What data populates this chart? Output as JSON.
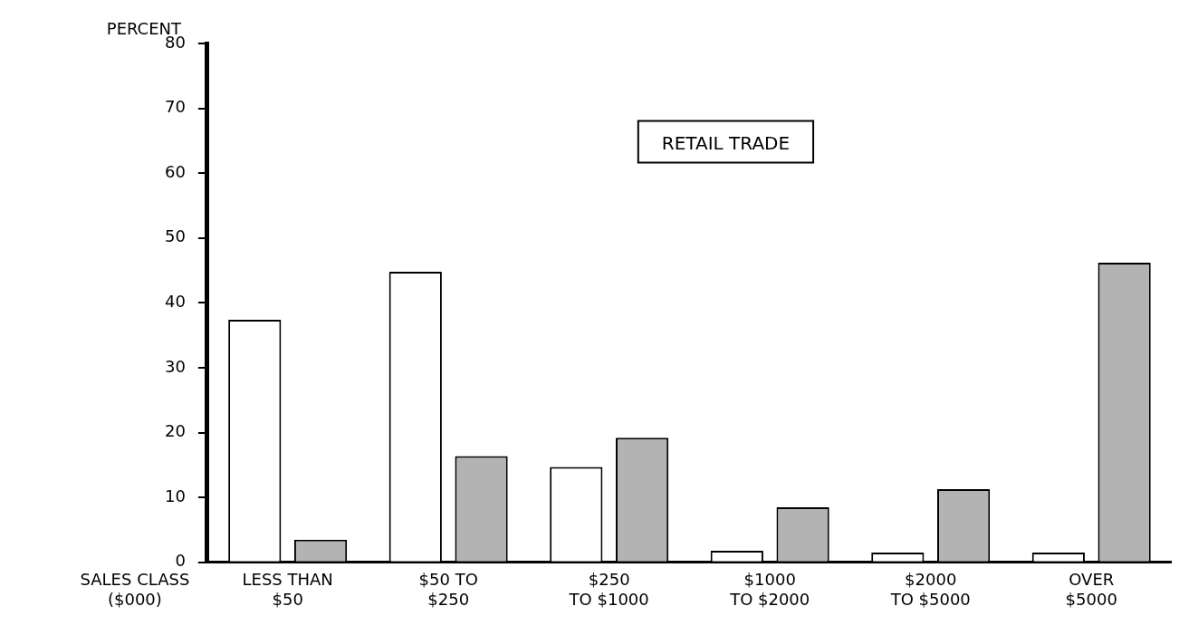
{
  "chart_data": {
    "type": "bar",
    "title": "RETAIL TRADE",
    "ylabel": "PERCENT",
    "xlabel": "SALES CLASS\n($000)",
    "categories": [
      "LESS THAN\n$50",
      "$50 TO\n$250",
      "$250\nTO $1000",
      "$1000\nTO $2000",
      "$2000\nTO $5000",
      "OVER\n$5000"
    ],
    "series": [
      {
        "color": "#ffffff",
        "values": [
          37.4,
          44.8,
          14.7,
          1.8,
          1.5,
          1.5
        ]
      },
      {
        "color": "#b3b3b3",
        "values": [
          3.5,
          16.4,
          19.2,
          8.5,
          11.3,
          46.2
        ]
      }
    ],
    "ylim": [
      0,
      80
    ],
    "yticks": [
      0,
      10,
      20,
      30,
      40,
      50,
      60,
      70,
      80
    ],
    "grid": false,
    "legend": false
  }
}
